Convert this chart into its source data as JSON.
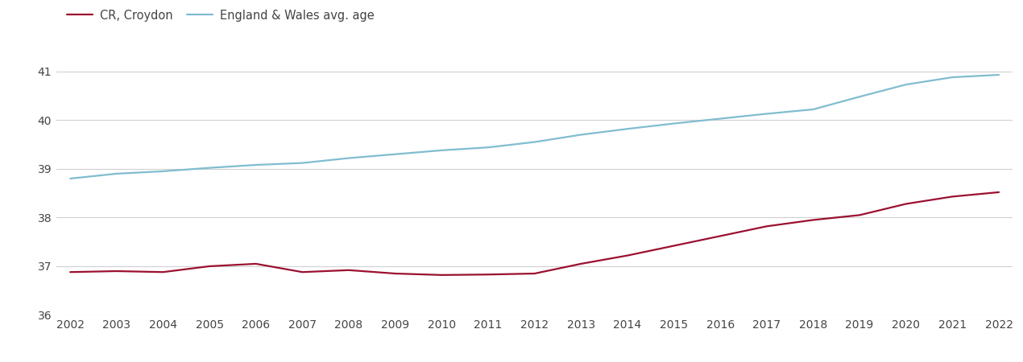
{
  "years": [
    2002,
    2003,
    2004,
    2005,
    2006,
    2007,
    2008,
    2009,
    2010,
    2011,
    2012,
    2013,
    2014,
    2015,
    2016,
    2017,
    2018,
    2019,
    2020,
    2021,
    2022
  ],
  "croydon": [
    36.88,
    36.9,
    36.88,
    37.0,
    37.05,
    36.88,
    36.92,
    36.85,
    36.82,
    36.83,
    36.85,
    37.05,
    37.22,
    37.42,
    37.62,
    37.82,
    37.95,
    38.05,
    38.28,
    38.43,
    38.52
  ],
  "england_wales": [
    38.8,
    38.9,
    38.95,
    39.02,
    39.08,
    39.12,
    39.22,
    39.3,
    39.38,
    39.44,
    39.55,
    39.7,
    39.82,
    39.93,
    40.03,
    40.13,
    40.22,
    40.48,
    40.73,
    40.88,
    40.93
  ],
  "croydon_color": "#9b1030",
  "england_wales_color": "#80bdd0",
  "croydon_label": "CR, Croydon",
  "england_wales_label": "England & Wales avg. age",
  "ylim": [
    36,
    41.5
  ],
  "yticks": [
    36,
    37,
    38,
    39,
    40,
    41
  ],
  "background_color": "#ffffff",
  "grid_color": "#d0d0d0",
  "line_width": 1.6,
  "font_color": "#444444",
  "font_size": 10.5,
  "tick_font_size": 10
}
